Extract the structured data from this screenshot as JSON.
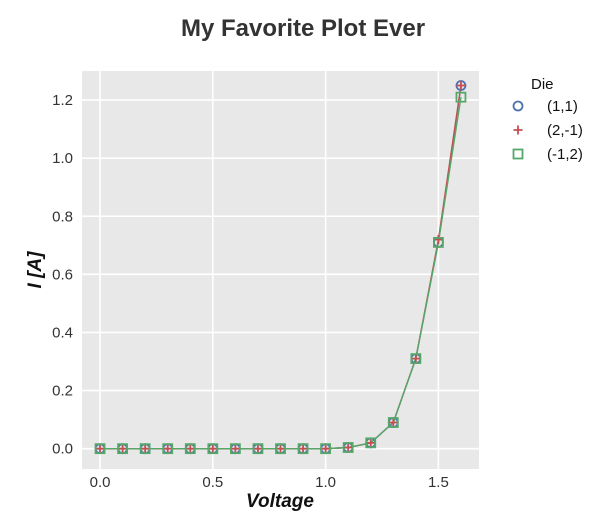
{
  "chart_data": {
    "type": "line",
    "title": "My Favorite Plot Ever",
    "xlabel": "Voltage",
    "ylabel": "I [A]",
    "xlim": [
      -0.08,
      1.68
    ],
    "ylim": [
      -0.07,
      1.3
    ],
    "xticks": [
      "0.0",
      "0.5",
      "1.0",
      "1.5"
    ],
    "yticks": [
      "0.0",
      "0.2",
      "0.4",
      "0.6",
      "0.8",
      "1.0",
      "1.2"
    ],
    "grid": true,
    "legend": {
      "title": "Die",
      "position": "outside-right"
    },
    "x": [
      0.0,
      0.1,
      0.2,
      0.3,
      0.4,
      0.5,
      0.6,
      0.7,
      0.8,
      0.9,
      1.0,
      1.1,
      1.2,
      1.3,
      1.4,
      1.5,
      1.6
    ],
    "series": [
      {
        "name": "(1,1)",
        "marker": "circle",
        "color": "#4c72b0",
        "values": [
          0,
          0,
          0,
          0,
          0,
          0,
          0,
          0,
          0,
          0,
          0,
          0.004,
          0.02,
          0.09,
          0.31,
          0.71,
          1.25
        ]
      },
      {
        "name": "(2,-1)",
        "marker": "plus",
        "color": "#c44e52",
        "values": [
          0,
          0,
          0,
          0,
          0,
          0,
          0,
          0,
          0,
          0,
          0,
          0.004,
          0.02,
          0.09,
          0.31,
          0.72,
          1.25
        ]
      },
      {
        "name": "(-1,2)",
        "marker": "square",
        "color": "#55a868",
        "values": [
          0,
          0,
          0,
          0,
          0,
          0,
          0,
          0,
          0,
          0,
          0,
          0.004,
          0.02,
          0.09,
          0.31,
          0.71,
          1.21
        ]
      }
    ]
  }
}
